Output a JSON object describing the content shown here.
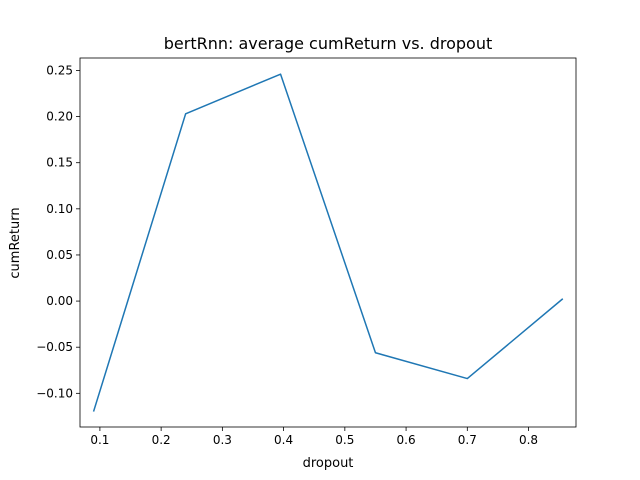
{
  "chart_data": {
    "type": "line",
    "title": "bertRnn: average cumReturn vs. dropout",
    "xlabel": "dropout",
    "ylabel": "cumReturn",
    "xlim": [
      0.0675,
      0.8775
    ],
    "ylim": [
      -0.1365,
      0.2635
    ],
    "xticks": [
      0.1,
      0.2,
      0.3,
      0.4,
      0.5,
      0.6,
      0.7,
      0.8
    ],
    "xtick_labels": [
      "0.1",
      "0.2",
      "0.3",
      "0.4",
      "0.5",
      "0.6",
      "0.7",
      "0.8"
    ],
    "yticks": [
      -0.1,
      -0.05,
      0.0,
      0.05,
      0.1,
      0.15,
      0.2,
      0.25
    ],
    "ytick_labels": [
      "−0.10",
      "−0.05",
      "0.00",
      "0.05",
      "0.10",
      "0.15",
      "0.20",
      "0.25"
    ],
    "grid": false,
    "legend": "none",
    "series": [
      {
        "color": "#1f77b4",
        "x": [
          0.09,
          0.24,
          0.395,
          0.55,
          0.7,
          0.855
        ],
        "y": [
          -0.119,
          0.203,
          0.246,
          -0.056,
          -0.084,
          0.002
        ]
      }
    ]
  }
}
